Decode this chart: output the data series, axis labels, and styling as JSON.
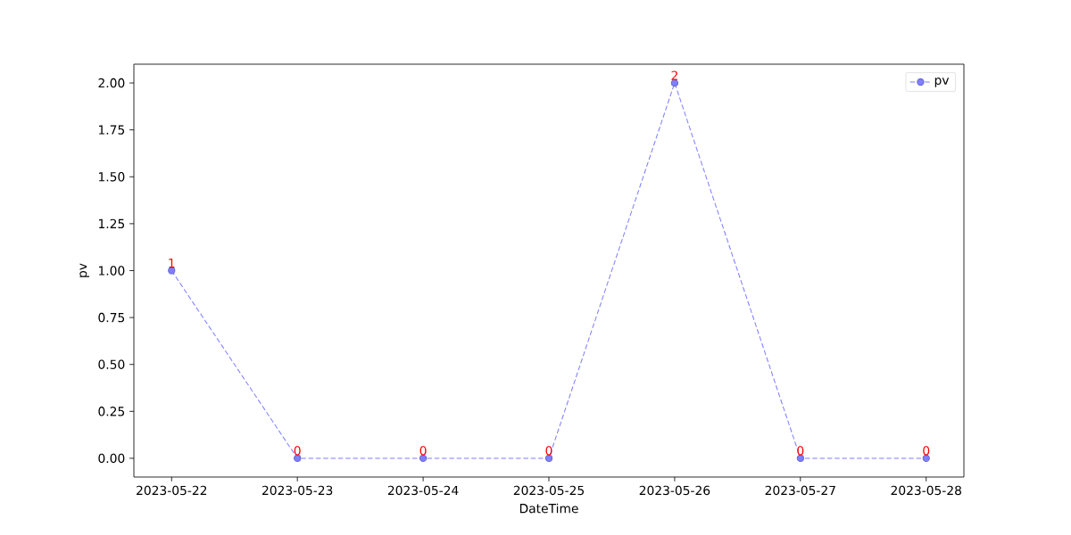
{
  "chart_data": {
    "type": "line",
    "xlabel": "DateTime",
    "ylabel": "pv",
    "x": [
      "2023-05-22",
      "2023-05-23",
      "2023-05-24",
      "2023-05-25",
      "2023-05-26",
      "2023-05-27",
      "2023-05-28"
    ],
    "series": [
      {
        "name": "pv",
        "color": "#7f7fff",
        "values": [
          1,
          0,
          0,
          0,
          2,
          0,
          0
        ]
      }
    ],
    "xlim": [
      "2023-05-21T16:48",
      "2023-05-28T07:12"
    ],
    "xticks": [
      "2023-05-22",
      "2023-05-23",
      "2023-05-24",
      "2023-05-25",
      "2023-05-26",
      "2023-05-27",
      "2023-05-28"
    ],
    "ylim": [
      -0.1,
      2.1
    ],
    "yticks": [
      {
        "value": 0,
        "label": "0.00"
      },
      {
        "value": 0.25,
        "label": "0.25"
      },
      {
        "value": 0.5,
        "label": "0.50"
      },
      {
        "value": 0.75,
        "label": "0.75"
      },
      {
        "value": 1,
        "label": "1.00"
      },
      {
        "value": 1.25,
        "label": "1.25"
      },
      {
        "value": 1.5,
        "label": "1.50"
      },
      {
        "value": 1.75,
        "label": "1.75"
      },
      {
        "value": 2,
        "label": "2.00"
      }
    ],
    "data_labels": true,
    "legend": "top right",
    "marker": "circle",
    "line_style": "dashed",
    "grid": false
  }
}
